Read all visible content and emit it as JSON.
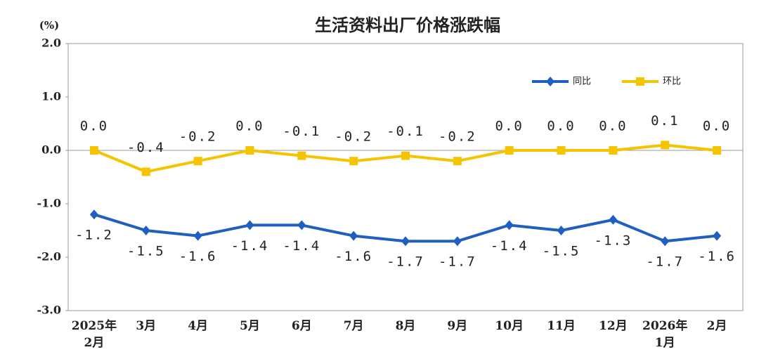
{
  "chart_data": {
    "type": "line",
    "title": "生活资料出厂价格涨跌幅",
    "y_unit": "(%)",
    "categories": [
      "2025年\n2月",
      "3月",
      "4月",
      "5月",
      "6月",
      "7月",
      "8月",
      "9月",
      "10月",
      "11月",
      "12月",
      "2026年\n1月",
      "2月"
    ],
    "series": [
      {
        "name": "同比",
        "color": "#1f5fbf",
        "marker": "diamond",
        "values": [
          -1.2,
          -1.5,
          -1.6,
          -1.4,
          -1.4,
          -1.6,
          -1.7,
          -1.7,
          -1.4,
          -1.5,
          -1.3,
          -1.7,
          -1.6
        ],
        "value_labels": [
          "-1.2",
          "-1.5",
          "-1.6",
          "-1.4",
          "-1.4",
          "-1.6",
          "-1.7",
          "-1.7",
          "-1.4",
          "-1.5",
          "-1.3",
          "-1.7",
          "-1.6"
        ]
      },
      {
        "name": "环比",
        "color": "#f5c400",
        "marker": "square",
        "values": [
          0,
          -0.4,
          -0.2,
          0,
          -0.1,
          -0.2,
          -0.1,
          -0.2,
          0,
          0,
          0,
          0.1,
          0
        ],
        "value_labels": [
          "0.0",
          "-0.4",
          "-0.2",
          "0.0",
          "-0.1",
          "-0.2",
          "-0.1",
          "-0.2",
          "0.0",
          "0.0",
          "0.0",
          "0.1",
          "0.0"
        ]
      }
    ],
    "ylim": [
      -3,
      2
    ],
    "yticks": [
      {
        "value": -3,
        "label": "-3.0"
      },
      {
        "value": -2,
        "label": "-2.0"
      },
      {
        "value": -1,
        "label": "-1.0"
      },
      {
        "value": 0,
        "label": "0.0"
      },
      {
        "value": 1,
        "label": "1.0"
      },
      {
        "value": 2,
        "label": "2.0"
      }
    ],
    "legend": "top-right"
  }
}
